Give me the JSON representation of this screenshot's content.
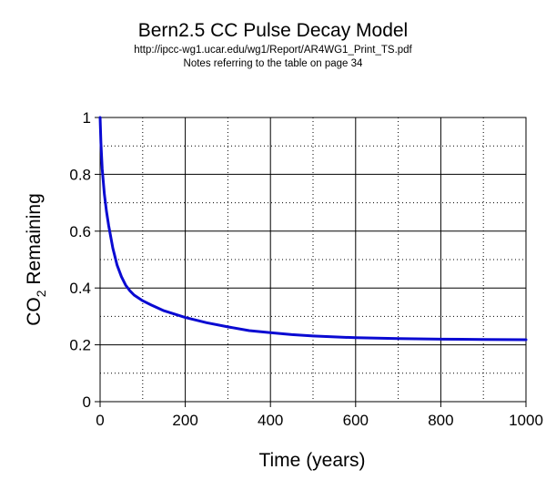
{
  "chart_data": {
    "type": "line",
    "title": "Bern2.5 CC Pulse Decay Model",
    "subtitle": "http://ipcc-wg1.ucar.edu/wg1/Report/AR4WG1_Print_TS.pdf",
    "subtitle2": "Notes referring to the table on page 34",
    "xlabel": "Time (years)",
    "ylabel": "CO2 Remaining",
    "ylabel_main": "CO",
    "ylabel_sub": "2",
    "ylabel_rest": " Remaining",
    "xlim": [
      0,
      1000
    ],
    "ylim": [
      0,
      1
    ],
    "xticks": [
      "0",
      "200",
      "400",
      "600",
      "800",
      "1000"
    ],
    "yticks": [
      "0",
      "0.2",
      "0.4",
      "0.6",
      "0.8",
      "1"
    ],
    "grid": true,
    "line_color": "#0a0ad2",
    "series": [
      {
        "x": [
          0,
          2,
          5,
          10,
          15,
          20,
          30,
          40,
          50,
          60,
          70,
          80,
          100,
          120,
          150,
          200,
          250,
          300,
          350,
          400,
          450,
          500,
          550,
          600,
          700,
          800,
          900,
          1000
        ],
        "values": [
          1.0,
          0.91,
          0.82,
          0.73,
          0.67,
          0.62,
          0.54,
          0.48,
          0.44,
          0.41,
          0.39,
          0.375,
          0.355,
          0.34,
          0.32,
          0.296,
          0.278,
          0.263,
          0.25,
          0.243,
          0.236,
          0.231,
          0.228,
          0.225,
          0.222,
          0.22,
          0.219,
          0.218
        ]
      }
    ]
  }
}
